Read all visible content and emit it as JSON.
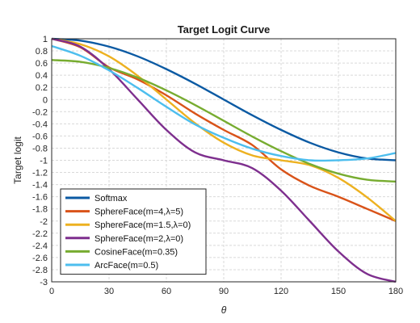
{
  "chart_data": {
    "type": "line",
    "title": "Target Logit Curve",
    "xlabel": "θ",
    "ylabel": "Target logit",
    "xlim": [
      0,
      180
    ],
    "ylim": [
      -3,
      1
    ],
    "xticks": [
      0,
      30,
      60,
      90,
      120,
      150,
      180
    ],
    "yticks": [
      1,
      0.8,
      0.6,
      0.4,
      0.2,
      0,
      -0.2,
      -0.4,
      -0.6,
      -0.8,
      -1,
      -1.2,
      -1.4,
      -1.6,
      -1.8,
      -2,
      -2.2,
      -2.4,
      -2.6,
      -2.8,
      -3
    ],
    "grid": true,
    "legend_position": "bottom-left",
    "x": [
      0,
      15,
      30,
      45,
      60,
      75,
      90,
      105,
      120,
      135,
      150,
      165,
      180
    ],
    "series": [
      {
        "name": "Softmax",
        "color": "#0b5aa3",
        "values": [
          1,
          0.97,
          0.87,
          0.71,
          0.5,
          0.26,
          0,
          -0.26,
          -0.5,
          -0.71,
          -0.87,
          -0.97,
          -1
        ]
      },
      {
        "name": "SphereFace(m=4,λ=5)",
        "color": "#d95319",
        "values": [
          1,
          0.86,
          0.53,
          0.33,
          0.07,
          -0.23,
          -0.5,
          -0.75,
          -1.15,
          -1.42,
          -1.6,
          -1.8,
          -2
        ]
      },
      {
        "name": "SphereFace(m=1.5,λ=0)",
        "color": "#edb120",
        "values": [
          1,
          0.91,
          0.71,
          0.39,
          0,
          -0.39,
          -0.71,
          -0.92,
          -1,
          -1.08,
          -1.29,
          -1.61,
          -2
        ]
      },
      {
        "name": "SphereFace(m=2,λ=0)",
        "color": "#7e2f8e",
        "values": [
          1,
          0.87,
          0.5,
          0,
          -0.5,
          -0.87,
          -1,
          -1.13,
          -1.5,
          -2,
          -2.5,
          -2.87,
          -3
        ]
      },
      {
        "name": "CosineFace(m=0.35)",
        "color": "#77ac30",
        "values": [
          0.65,
          0.62,
          0.52,
          0.36,
          0.15,
          -0.09,
          -0.35,
          -0.61,
          -0.85,
          -1.06,
          -1.22,
          -1.32,
          -1.35
        ]
      },
      {
        "name": "ArcFace(m=0.5)",
        "color": "#4dbeee",
        "values": [
          0.88,
          0.72,
          0.48,
          0.19,
          -0.12,
          -0.41,
          -0.63,
          -0.81,
          -0.93,
          -1,
          -1,
          -0.97,
          -0.88
        ]
      }
    ]
  }
}
